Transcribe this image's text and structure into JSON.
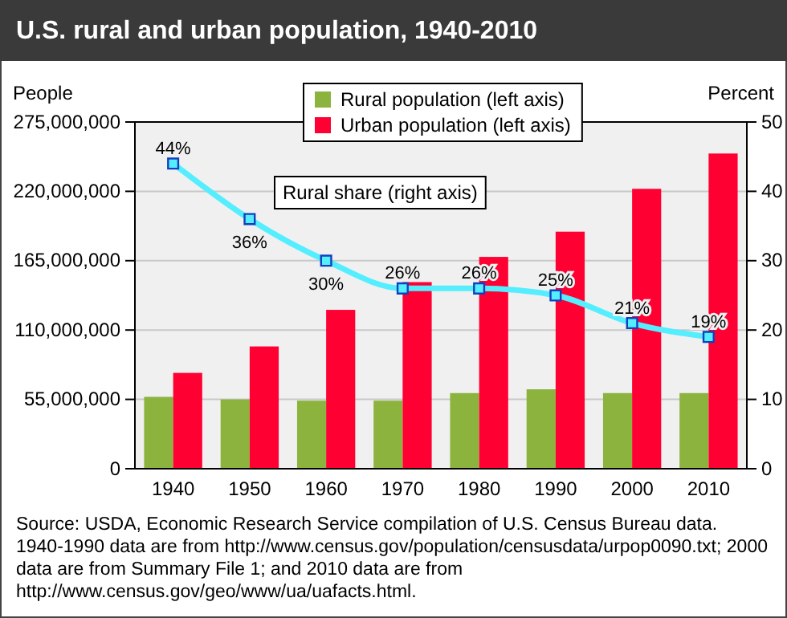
{
  "chart_data": {
    "type": "bar",
    "title": "U.S. rural and urban population, 1940-2010",
    "categories": [
      "1940",
      "1950",
      "1960",
      "1970",
      "1980",
      "1990",
      "2000",
      "2010"
    ],
    "series": [
      {
        "name": "Rural population (left axis)",
        "color": "#8db33f",
        "values": [
          57000000,
          55000000,
          54000000,
          54000000,
          60000000,
          63000000,
          60000000,
          60000000
        ]
      },
      {
        "name": "Urban population (left axis)",
        "color": "#ff0033",
        "values": [
          76000000,
          97000000,
          126000000,
          148000000,
          168000000,
          188000000,
          222000000,
          250000000
        ]
      },
      {
        "name": "Rural share (right axis)",
        "type": "line",
        "axis": "y2",
        "color": "#55eeff",
        "marker": "square",
        "values": [
          44,
          36,
          30,
          26,
          26,
          25,
          21,
          19
        ],
        "value_labels": [
          "44%",
          "36%",
          "30%",
          "26%",
          "26%",
          "25%",
          "21%",
          "19%"
        ]
      }
    ],
    "ylabel": "People",
    "y2label": "Percent",
    "ylim": [
      0,
      275000000
    ],
    "yticks": [
      0,
      {
        "value": 55000000,
        "label": "55,000,000"
      },
      {
        "value": 110000000,
        "label": "110,000,000"
      },
      {
        "value": 165000000,
        "label": "165,000,000"
      },
      {
        "value": 220000000,
        "label": "220,000,000"
      },
      {
        "value": 275000000,
        "label": "275,000,000"
      }
    ],
    "y2lim": [
      0,
      50
    ],
    "y2ticks": [
      0,
      10,
      20,
      30,
      40,
      50
    ],
    "grid": "y",
    "legend": "top",
    "annotations": [
      "Source: USDA, Economic Research Service compilation of U.S. Census Bureau data. 1940-1990 data are from http://www.census.gov/population/censusdata/urpop0090.txt; 2000 data are from Summary File 1; and 2010 data are from http://www.census.gov/geo/www/ua/uafacts.html."
    ]
  }
}
